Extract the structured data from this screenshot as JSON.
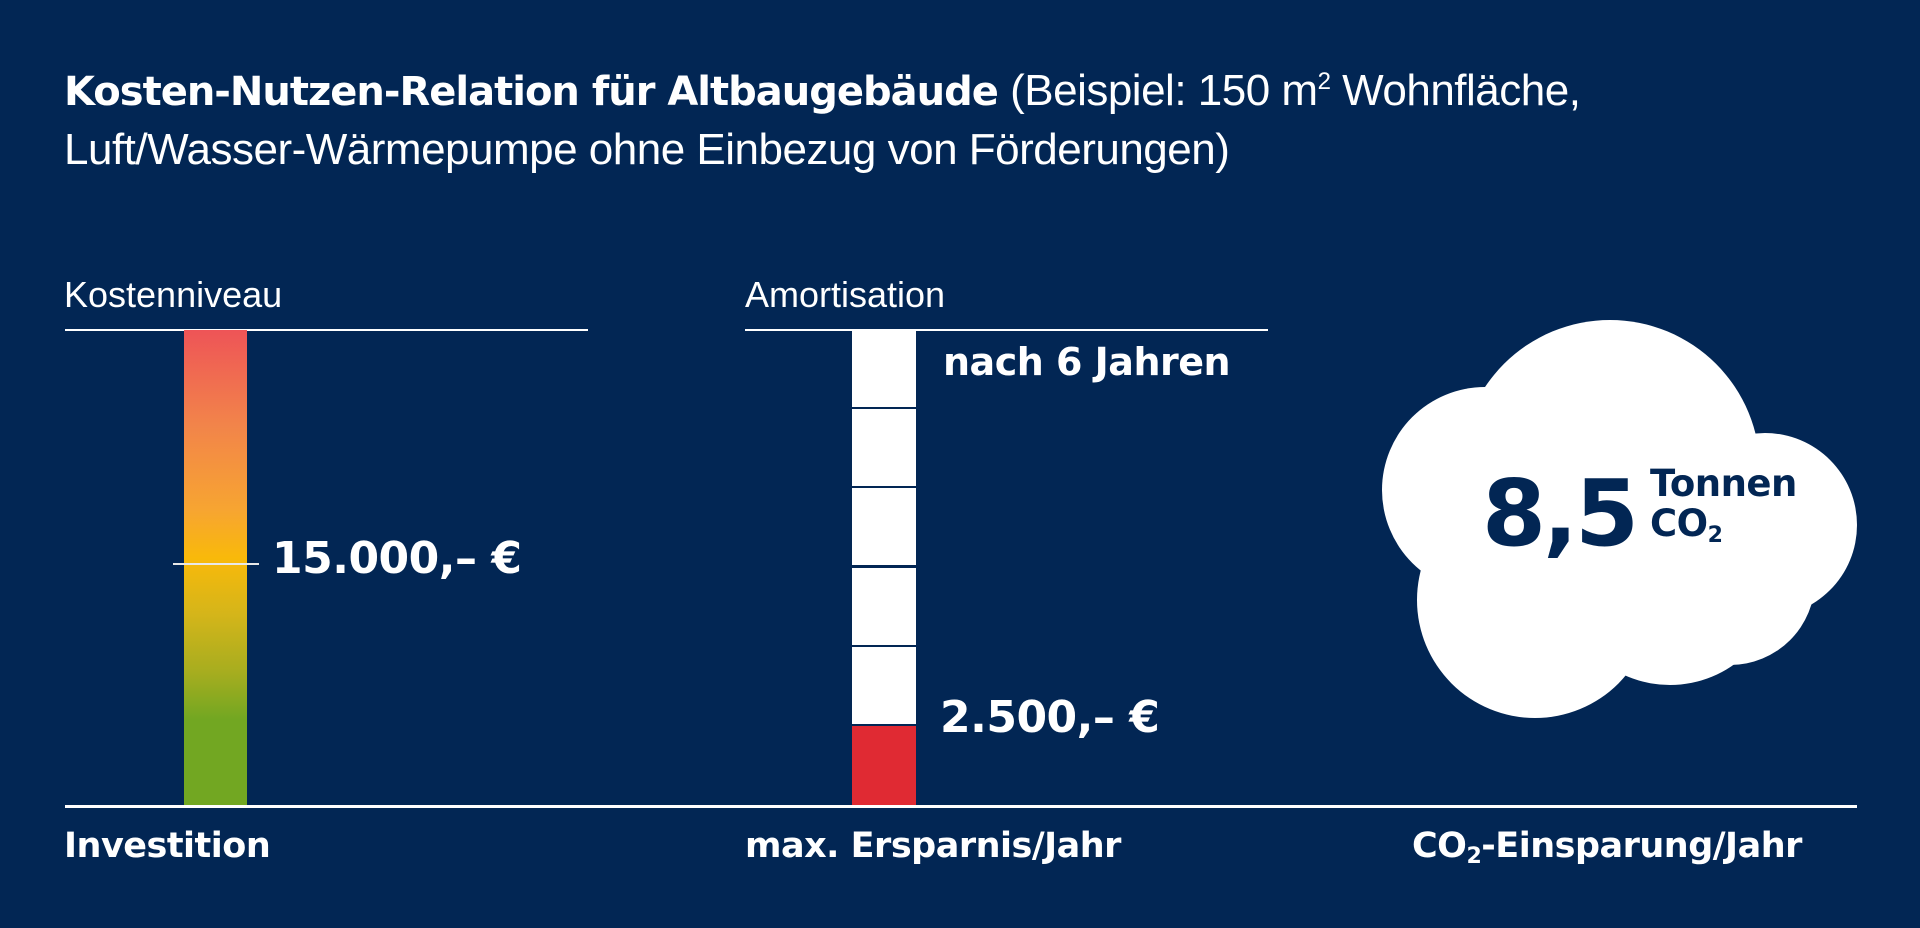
{
  "header": {
    "title_bold": "Kosten-Nutzen-Relation für Altbaugebäude",
    "title_light_part1": "(Beispiel: 150 m",
    "title_light_sup": "2",
    "title_light_part2": " Wohnfläche,",
    "title_line2": "Luft/Wasser-Wärmepumpe ohne Einbezug von Förderungen)"
  },
  "colors": {
    "background": "#022654",
    "text": "#ffffff",
    "gradient_top": "#ee5457",
    "gradient_mid": "#f9b90a",
    "gradient_bottom": "#72a722",
    "savings_fill": "#e02a33",
    "cloud": "#ffffff"
  },
  "chart_data": [
    {
      "type": "bar",
      "title": "Kostenniveau",
      "categories": [
        "Investition"
      ],
      "values": [
        15000
      ],
      "value_label": "15.000,– €",
      "marker_level": 0.5,
      "xlabel": "Investition",
      "scale": "gradient red (high) to green (low)"
    },
    {
      "type": "bar",
      "title": "Amortisation",
      "categories": [
        "max. Ersparnis/Jahr"
      ],
      "values": [
        2500
      ],
      "value_label": "2.500,– €",
      "segments_total": 6,
      "segments_filled": 1,
      "top_label": "nach 6 Jahren",
      "xlabel": "max. Ersparnis/Jahr"
    },
    {
      "type": "table",
      "title": "CO2-Einsparung/Jahr",
      "value": 8.5,
      "value_label": "8,5",
      "unit_line1": "Tonnen",
      "unit_line2_main": "CO",
      "unit_line2_sub": "2",
      "xlabel_main": "CO",
      "xlabel_sub": "2",
      "xlabel_rest": "-Einsparung/Jahr"
    }
  ]
}
